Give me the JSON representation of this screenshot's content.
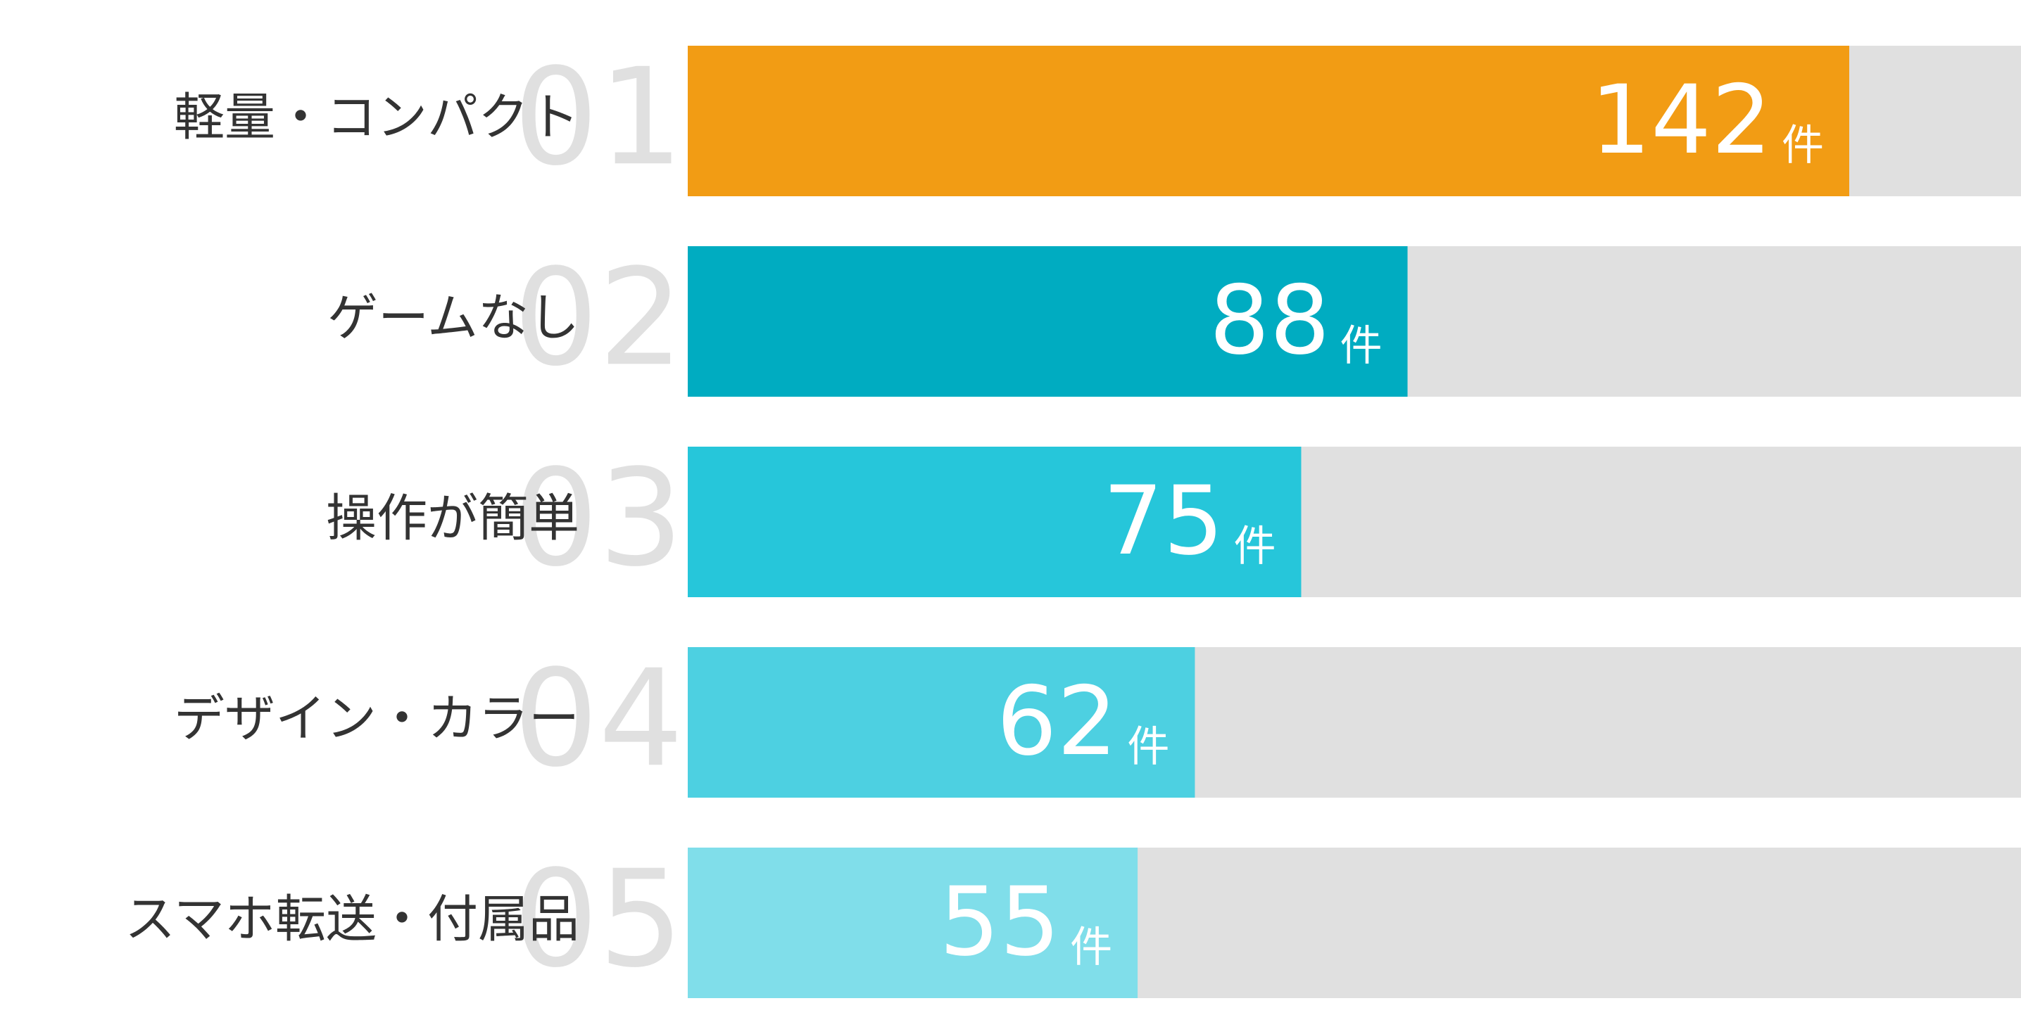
{
  "chart_data": {
    "type": "bar",
    "orientation": "horizontal",
    "categories": [
      "軽量・コンパクト",
      "ゲームなし",
      "操作が簡単",
      "デザイン・カラー",
      "スマホ転送・付属品"
    ],
    "ranks": [
      "01",
      "02",
      "03",
      "04",
      "05"
    ],
    "values": [
      142,
      88,
      75,
      62,
      55
    ],
    "unit": "件",
    "colors": [
      "#f29c14",
      "#00acc1",
      "#26c6da",
      "#4dd0e1",
      "#80deea"
    ],
    "track_color": "#e0e0e0",
    "xlim": [
      0,
      163
    ]
  }
}
